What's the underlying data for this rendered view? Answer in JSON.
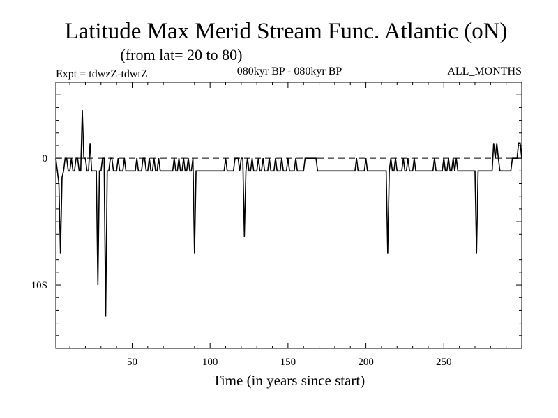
{
  "chart_data": {
    "type": "line",
    "title": "Latitude Max Merid Stream Func. Atlantic (oN)",
    "subtitle": "(from lat= 20 to 80)",
    "expt_label": "Expt = tdwzZ-tdwtZ",
    "period_label": "080kyr BP - 080kyr BP",
    "months_label": "ALL_MONTHS",
    "xlabel": "Time (in years since start)",
    "ylabel": "",
    "xlim": [
      1,
      300
    ],
    "ylim": [
      -15,
      6
    ],
    "x_ticks": [
      50,
      100,
      150,
      200,
      250
    ],
    "y_ticks": [
      {
        "value": 0,
        "label": "0"
      },
      {
        "value": -10,
        "label": "10S"
      }
    ],
    "reference_line": 0,
    "series": [
      {
        "name": "",
        "color": "#000000",
        "points": [
          [
            1,
            0
          ],
          [
            2,
            -1
          ],
          [
            3,
            -2
          ],
          [
            4,
            -7.5
          ],
          [
            5,
            -1.5
          ],
          [
            6,
            -1
          ],
          [
            7,
            0
          ],
          [
            8,
            0
          ],
          [
            9,
            -1
          ],
          [
            10,
            -1
          ],
          [
            11,
            0
          ],
          [
            12,
            -1
          ],
          [
            13,
            -1
          ],
          [
            14,
            0
          ],
          [
            15,
            0
          ],
          [
            16,
            -1
          ],
          [
            17,
            -1
          ],
          [
            18,
            3.8
          ],
          [
            19,
            0
          ],
          [
            20,
            0
          ],
          [
            21,
            -1
          ],
          [
            22,
            -1
          ],
          [
            23,
            1.2
          ],
          [
            24,
            -1
          ],
          [
            25,
            -1
          ],
          [
            26,
            -1
          ],
          [
            27,
            -1
          ],
          [
            28,
            -10
          ],
          [
            29,
            -1
          ],
          [
            30,
            -1
          ],
          [
            31,
            0
          ],
          [
            32,
            0
          ],
          [
            33,
            -12.5
          ],
          [
            34,
            -1
          ],
          [
            35,
            -1
          ],
          [
            36,
            0
          ],
          [
            37,
            0
          ],
          [
            38,
            -1
          ],
          [
            39,
            -1
          ],
          [
            40,
            -1
          ],
          [
            41,
            0
          ],
          [
            42,
            -1
          ],
          [
            43,
            -1
          ],
          [
            44,
            -1
          ],
          [
            45,
            0
          ],
          [
            46,
            -1
          ],
          [
            47,
            -1
          ],
          [
            48,
            -1
          ],
          [
            49,
            -1
          ],
          [
            50,
            -1
          ],
          [
            51,
            -1
          ],
          [
            52,
            -1
          ],
          [
            53,
            0
          ],
          [
            54,
            -1
          ],
          [
            55,
            -1
          ],
          [
            56,
            -1
          ],
          [
            57,
            0
          ],
          [
            58,
            0
          ],
          [
            59,
            -1
          ],
          [
            60,
            -1
          ],
          [
            61,
            0
          ],
          [
            62,
            -1
          ],
          [
            63,
            -1
          ],
          [
            64,
            0
          ],
          [
            65,
            -1
          ],
          [
            66,
            -1
          ],
          [
            67,
            0
          ],
          [
            68,
            -1
          ],
          [
            69,
            -1
          ],
          [
            70,
            -1
          ],
          [
            71,
            -1
          ],
          [
            72,
            -1
          ],
          [
            73,
            -1
          ],
          [
            74,
            -1
          ],
          [
            75,
            -1
          ],
          [
            76,
            -1
          ],
          [
            77,
            0
          ],
          [
            78,
            -1
          ],
          [
            79,
            -1
          ],
          [
            80,
            0
          ],
          [
            81,
            -1
          ],
          [
            82,
            -1
          ],
          [
            83,
            0
          ],
          [
            84,
            -1
          ],
          [
            85,
            -1
          ],
          [
            86,
            0
          ],
          [
            87,
            -1
          ],
          [
            88,
            -1
          ],
          [
            89,
            0
          ],
          [
            90,
            -7.5
          ],
          [
            91,
            -1
          ],
          [
            92,
            -1
          ],
          [
            93,
            -1
          ],
          [
            94,
            -1
          ],
          [
            95,
            -1
          ],
          [
            96,
            -1
          ],
          [
            97,
            -1
          ],
          [
            98,
            -1
          ],
          [
            99,
            -1
          ],
          [
            100,
            -1
          ],
          [
            101,
            -1
          ],
          [
            102,
            -1
          ],
          [
            103,
            -1
          ],
          [
            104,
            -1
          ],
          [
            105,
            -1
          ],
          [
            106,
            -1
          ],
          [
            107,
            -1
          ],
          [
            108,
            -1
          ],
          [
            109,
            -1
          ],
          [
            110,
            0
          ],
          [
            111,
            -1
          ],
          [
            112,
            -1
          ],
          [
            113,
            -1
          ],
          [
            114,
            -1
          ],
          [
            115,
            -1
          ],
          [
            116,
            0
          ],
          [
            117,
            0
          ],
          [
            118,
            0
          ],
          [
            119,
            -1
          ],
          [
            120,
            0
          ],
          [
            121,
            0
          ],
          [
            122,
            -6.2
          ],
          [
            123,
            -1
          ],
          [
            124,
            0
          ],
          [
            125,
            -1
          ],
          [
            126,
            -1
          ],
          [
            127,
            0
          ],
          [
            128,
            -1
          ],
          [
            129,
            -1
          ],
          [
            130,
            -1
          ],
          [
            131,
            0
          ],
          [
            132,
            -1
          ],
          [
            133,
            -1
          ],
          [
            134,
            0
          ],
          [
            135,
            -1
          ],
          [
            136,
            -1
          ],
          [
            137,
            -1
          ],
          [
            138,
            0
          ],
          [
            139,
            -1
          ],
          [
            140,
            -1
          ],
          [
            141,
            -1
          ],
          [
            142,
            0
          ],
          [
            143,
            -1
          ],
          [
            144,
            -1
          ],
          [
            145,
            -1
          ],
          [
            146,
            0
          ],
          [
            147,
            -1
          ],
          [
            148,
            -1
          ],
          [
            149,
            -1
          ],
          [
            150,
            0
          ],
          [
            151,
            -1
          ],
          [
            152,
            -1
          ],
          [
            153,
            -1
          ],
          [
            154,
            -1
          ],
          [
            155,
            0
          ],
          [
            156,
            -1
          ],
          [
            157,
            -1
          ],
          [
            158,
            -1
          ],
          [
            159,
            -1
          ],
          [
            160,
            -1
          ],
          [
            161,
            0
          ],
          [
            162,
            0
          ],
          [
            163,
            0
          ],
          [
            164,
            0
          ],
          [
            165,
            0
          ],
          [
            166,
            0
          ],
          [
            167,
            0
          ],
          [
            168,
            0
          ],
          [
            169,
            -1
          ],
          [
            170,
            -1
          ],
          [
            171,
            -1
          ],
          [
            172,
            -1
          ],
          [
            173,
            -1
          ],
          [
            174,
            -1
          ],
          [
            175,
            -1
          ],
          [
            176,
            -1
          ],
          [
            177,
            -1
          ],
          [
            178,
            -1
          ],
          [
            179,
            -1
          ],
          [
            180,
            -1
          ],
          [
            181,
            -1
          ],
          [
            182,
            -1
          ],
          [
            183,
            -1
          ],
          [
            184,
            -1
          ],
          [
            185,
            -1
          ],
          [
            186,
            -1
          ],
          [
            187,
            -1
          ],
          [
            188,
            -1
          ],
          [
            189,
            -1
          ],
          [
            190,
            -1
          ],
          [
            191,
            -1
          ],
          [
            192,
            -1
          ],
          [
            193,
            -1
          ],
          [
            194,
            0
          ],
          [
            195,
            -1
          ],
          [
            196,
            -1
          ],
          [
            197,
            -1
          ],
          [
            198,
            -1
          ],
          [
            199,
            -1
          ],
          [
            200,
            0
          ],
          [
            201,
            -1
          ],
          [
            202,
            -1
          ],
          [
            203,
            -1
          ],
          [
            204,
            -1
          ],
          [
            205,
            -1
          ],
          [
            206,
            -1
          ],
          [
            207,
            -1
          ],
          [
            208,
            -1
          ],
          [
            209,
            -1
          ],
          [
            210,
            -1
          ],
          [
            211,
            -1
          ],
          [
            212,
            -1
          ],
          [
            213,
            -1
          ],
          [
            214,
            -7.5
          ],
          [
            215,
            -1
          ],
          [
            216,
            0
          ],
          [
            217,
            -1
          ],
          [
            218,
            -1
          ],
          [
            219,
            0
          ],
          [
            220,
            -1
          ],
          [
            221,
            -1
          ],
          [
            222,
            -1
          ],
          [
            223,
            -1
          ],
          [
            224,
            0
          ],
          [
            225,
            -1
          ],
          [
            226,
            -1
          ],
          [
            227,
            0
          ],
          [
            228,
            -1
          ],
          [
            229,
            -1
          ],
          [
            230,
            -1
          ],
          [
            231,
            0
          ],
          [
            232,
            -1
          ],
          [
            233,
            -1
          ],
          [
            234,
            -1
          ],
          [
            235,
            -1
          ],
          [
            236,
            -1
          ],
          [
            237,
            -1
          ],
          [
            238,
            -1
          ],
          [
            239,
            -1
          ],
          [
            240,
            -1
          ],
          [
            241,
            -1
          ],
          [
            242,
            -1
          ],
          [
            243,
            -1
          ],
          [
            244,
            0
          ],
          [
            245,
            -1
          ],
          [
            246,
            -1
          ],
          [
            247,
            -1
          ],
          [
            248,
            -1
          ],
          [
            249,
            -1
          ],
          [
            250,
            0
          ],
          [
            251,
            -1
          ],
          [
            252,
            -1
          ],
          [
            253,
            0
          ],
          [
            254,
            -1
          ],
          [
            255,
            -1
          ],
          [
            256,
            0
          ],
          [
            257,
            -1
          ],
          [
            258,
            0
          ],
          [
            259,
            -1
          ],
          [
            260,
            -1
          ],
          [
            261,
            -1
          ],
          [
            262,
            -1
          ],
          [
            263,
            -1
          ],
          [
            264,
            -1
          ],
          [
            265,
            -1
          ],
          [
            266,
            -1
          ],
          [
            267,
            -1
          ],
          [
            268,
            -1
          ],
          [
            269,
            -1
          ],
          [
            270,
            -1
          ],
          [
            271,
            -7.5
          ],
          [
            272,
            -1
          ],
          [
            273,
            -1
          ],
          [
            274,
            -1
          ],
          [
            275,
            -1
          ],
          [
            276,
            -1
          ],
          [
            277,
            -1
          ],
          [
            278,
            -1
          ],
          [
            279,
            -1
          ],
          [
            280,
            -1
          ],
          [
            281,
            -1
          ],
          [
            282,
            1.2
          ],
          [
            283,
            0
          ],
          [
            284,
            1.2
          ],
          [
            285,
            0
          ],
          [
            286,
            -1
          ],
          [
            287,
            -1
          ],
          [
            288,
            -1
          ],
          [
            289,
            -1
          ],
          [
            290,
            -1
          ],
          [
            291,
            -1
          ],
          [
            292,
            -1
          ],
          [
            293,
            -1
          ],
          [
            294,
            0
          ],
          [
            295,
            0
          ],
          [
            296,
            0
          ],
          [
            297,
            0
          ],
          [
            298,
            1.2
          ],
          [
            299,
            1.2
          ],
          [
            300,
            0
          ]
        ]
      }
    ]
  }
}
